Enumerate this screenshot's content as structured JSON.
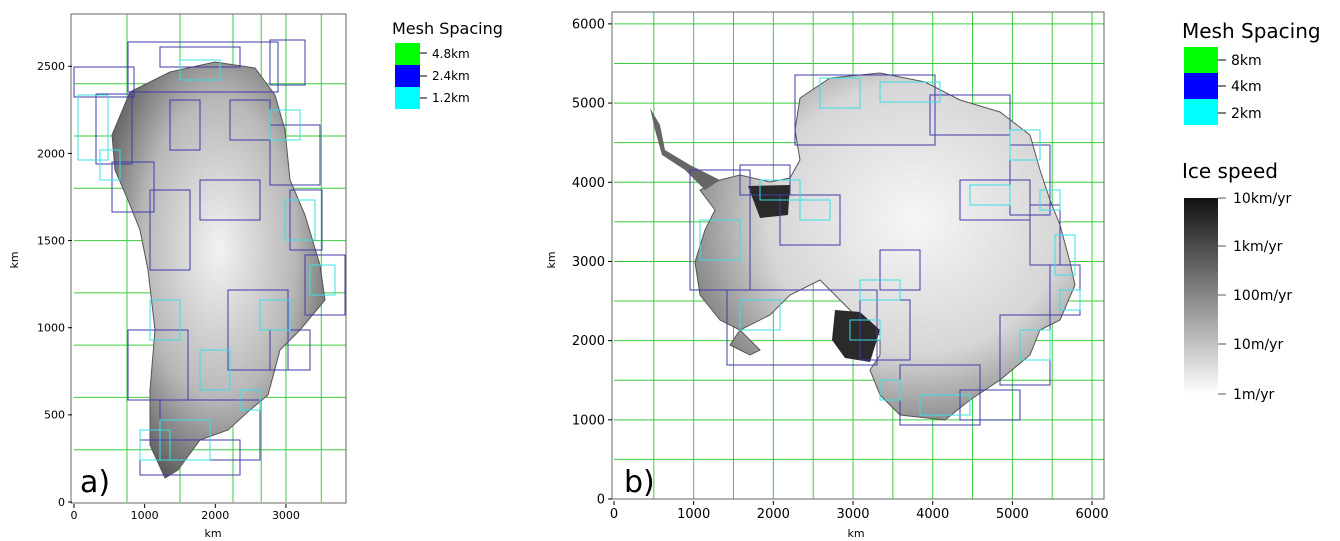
{
  "panel_a": {
    "label": "a)",
    "xlabel": "km",
    "ylabel": "km",
    "legend_title": "Mesh Spacing",
    "legend": [
      {
        "label": "4.8km",
        "color": "#00ff00"
      },
      {
        "label": "2.4km",
        "color": "#0000ff"
      },
      {
        "label": "1.2km",
        "color": "#00ffff"
      }
    ]
  },
  "panel_b": {
    "label": "b)",
    "xlabel": "km",
    "ylabel": "km",
    "legend_title": "Mesh Spacing",
    "legend": [
      {
        "label": "8km",
        "color": "#00ff00"
      },
      {
        "label": "4km",
        "color": "#0000ff"
      },
      {
        "label": "2km",
        "color": "#00ffff"
      }
    ],
    "colorbar_title": "Ice speed",
    "colorbar_ticks": [
      "10km/yr",
      "1km/yr",
      "100m/yr",
      "10m/yr",
      "1m/yr"
    ]
  },
  "chart_data": [
    {
      "type": "heatmap",
      "title": "",
      "panel": "a)",
      "xlabel": "km",
      "ylabel": "km",
      "xlim": [
        0,
        3850
      ],
      "ylim": [
        0,
        2800
      ],
      "xticks": [
        0,
        1000,
        2000,
        3000
      ],
      "yticks": [
        0,
        500,
        1000,
        1500,
        2000,
        2500
      ],
      "grid_lines_x": [
        750,
        1500,
        2250,
        2650,
        3000,
        3500
      ],
      "grid_lines_y": [
        300,
        600,
        900,
        1200,
        1500,
        1800,
        2100,
        2400
      ],
      "mesh_spacing_levels": [
        "4.8km",
        "2.4km",
        "1.2km"
      ],
      "grid": true
    },
    {
      "type": "heatmap",
      "title": "",
      "panel": "b)",
      "xlabel": "km",
      "ylabel": "km",
      "xlim": [
        0,
        6150
      ],
      "ylim": [
        0,
        6150
      ],
      "xticks": [
        0,
        1000,
        2000,
        3000,
        4000,
        5000,
        6000
      ],
      "yticks": [
        0,
        1000,
        2000,
        3000,
        4000,
        5000,
        6000
      ],
      "grid_lines_x": [
        500,
        1000,
        1500,
        2000,
        2500,
        3000,
        3500,
        4000,
        4500,
        5000,
        5500,
        6000
      ],
      "grid_lines_y": [
        500,
        1000,
        1500,
        2000,
        2500,
        3000,
        3500,
        4000,
        4500,
        5000,
        5500,
        6000
      ],
      "mesh_spacing_levels": [
        "8km",
        "4km",
        "2km"
      ],
      "colorbar": {
        "label": "Ice speed",
        "scale": "log",
        "range": [
          "1m/yr",
          "10km/yr"
        ]
      },
      "grid": true
    }
  ]
}
